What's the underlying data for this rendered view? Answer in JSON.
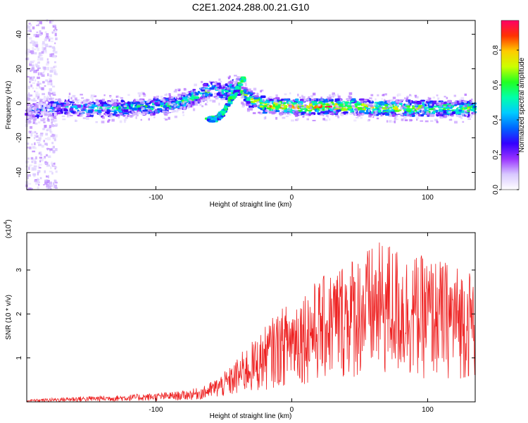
{
  "title": "C2E1.2024.288.00.21.G10",
  "colors": {
    "background": "#ffffff",
    "axis": "#000000",
    "snr_line": "#ee2222",
    "colormap": [
      "#ffffff",
      "#d8c8ff",
      "#9933ff",
      "#3300ff",
      "#0066ff",
      "#00ccff",
      "#00ffaa",
      "#22ff22",
      "#ccff00",
      "#ffcc00",
      "#ff3300",
      "#ff0066"
    ]
  },
  "chart_data": [
    {
      "type": "heatmap",
      "xlabel": "Height of straight line (km)",
      "ylabel": "Frequency (Hz)",
      "xlim": [
        -195,
        135
      ],
      "ylim": [
        -50,
        48
      ],
      "x_ticks": [
        -100,
        0,
        100
      ],
      "x_tick_labels": [
        "-100",
        "0",
        "100"
      ],
      "y_ticks": [
        -40,
        -20,
        0,
        20,
        40
      ],
      "y_tick_labels": [
        "-40",
        "-20",
        "0",
        "20",
        "40"
      ],
      "grid": false,
      "colorbar": {
        "label": "Normalized spectral amplitude",
        "range": [
          0,
          0.97
        ],
        "ticks": [
          0.0,
          0.2,
          0.4,
          0.6,
          0.8
        ],
        "tick_labels": [
          "0.0",
          "0.2",
          "0.4",
          "0.6",
          "0.8"
        ]
      },
      "ridge": {
        "description_points_x": [
          -195,
          -185,
          -170,
          -150,
          -130,
          -110,
          -95,
          -80,
          -70,
          -63,
          -58,
          -50,
          -45,
          -40,
          -35,
          -30,
          -20,
          0,
          20,
          50,
          80,
          110,
          135
        ],
        "frequency_y": [
          -6,
          -4,
          -2,
          -3,
          -3,
          -2,
          -2,
          1,
          4,
          7,
          8,
          6,
          8,
          10,
          5,
          2,
          -1,
          -2,
          -2,
          -2,
          -3,
          -3,
          -3
        ],
        "amplitude": [
          0.25,
          0.35,
          0.4,
          0.45,
          0.45,
          0.5,
          0.55,
          0.55,
          0.6,
          0.6,
          0.55,
          0.5,
          0.5,
          0.55,
          0.6,
          0.7,
          0.8,
          0.85,
          0.85,
          0.75,
          0.7,
          0.65,
          0.6
        ]
      },
      "secondary_branch": {
        "x": [
          -63,
          -55,
          -50,
          -45,
          -40,
          -35
        ],
        "frequency_y": [
          -10,
          -9,
          -5,
          2,
          8,
          15
        ]
      }
    },
    {
      "type": "line",
      "xlabel": "Height of straight line (km)",
      "ylabel": "SNR (10 * v/v)",
      "y_scale_label": "(x10",
      "y_scale_exponent": "4",
      "xlim": [
        -195,
        135
      ],
      "ylim": [
        0,
        3.85
      ],
      "x_ticks": [
        -100,
        0,
        100
      ],
      "x_tick_labels": [
        "-100",
        "0",
        "100"
      ],
      "y_ticks": [
        1,
        2,
        3
      ],
      "y_tick_labels": [
        "1",
        "2",
        "3"
      ],
      "grid": false,
      "series": [
        {
          "envelope_x": [
            -195,
            -160,
            -130,
            -100,
            -80,
            -65,
            -55,
            -45,
            -35,
            -25,
            -15,
            -5,
            5,
            15,
            25,
            40,
            55,
            70,
            85,
            100,
            115,
            135
          ],
          "envelope_upper": [
            0.05,
            0.12,
            0.15,
            0.2,
            0.25,
            0.35,
            0.55,
            0.8,
            1.2,
            1.5,
            1.9,
            2.2,
            2.5,
            2.7,
            2.9,
            3.3,
            3.5,
            3.7,
            3.4,
            3.3,
            3.2,
            3.0
          ],
          "envelope_lower": [
            0.0,
            0.0,
            0.01,
            0.02,
            0.03,
            0.05,
            0.08,
            0.1,
            0.15,
            0.2,
            0.3,
            0.35,
            0.4,
            0.4,
            0.45,
            0.5,
            0.5,
            0.5,
            0.5,
            0.5,
            0.5,
            0.5
          ]
        }
      ]
    }
  ]
}
